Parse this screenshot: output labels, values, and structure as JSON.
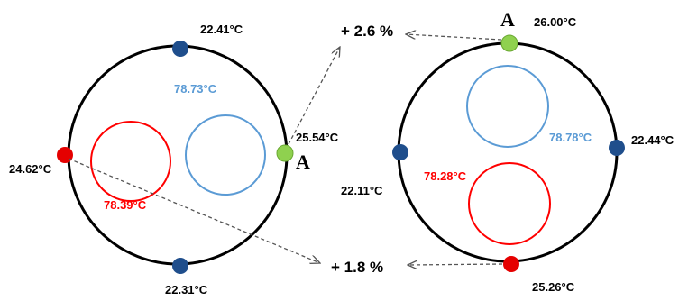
{
  "left_diagram": {
    "top_sensor": "22.41°C",
    "right_sensor": "25.54°C",
    "left_sensor": "24.62°C",
    "bottom_sensor": "22.31°C",
    "red_circle_temp": "78.39°C",
    "blue_circle_temp": "78.73°C",
    "point_label": "A"
  },
  "right_diagram": {
    "top_sensor": "26.00°C",
    "right_sensor": "22.44°C",
    "left_sensor": "22.11°C",
    "bottom_sensor": "25.26°C",
    "blue_circle_temp": "78.78°C",
    "red_circle_temp": "78.28°C",
    "point_label": "A"
  },
  "increases": {
    "upper": "+ 2.6 %",
    "lower": "+ 1.8 %"
  },
  "colors": {
    "outline": "#000000",
    "sensor_blue": "#1f4e8c",
    "sensor_green": "#8fd14f",
    "sensor_red": "#e50000",
    "hot_red": "#ff0000",
    "hot_blue": "#5b9bd5",
    "arrow": "#555555"
  }
}
